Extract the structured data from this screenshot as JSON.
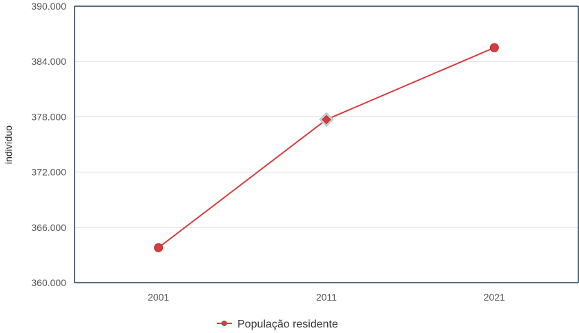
{
  "chart_data": {
    "type": "line",
    "title": "",
    "xlabel": "",
    "ylabel": "indivíduo",
    "categories": [
      "2001",
      "2011",
      "2021"
    ],
    "series": [
      {
        "name": "População residente",
        "values": [
          363800,
          377700,
          385500
        ],
        "color": "#d63c3c",
        "markers": [
          "circle",
          "diamond",
          "circle"
        ]
      }
    ],
    "ylim": [
      360000,
      390000
    ],
    "yticks": [
      360000,
      366000,
      372000,
      378000,
      384000,
      390000
    ],
    "ytick_labels": [
      "360.000",
      "366.000",
      "372.000",
      "378.000",
      "384.000",
      "390.000"
    ],
    "grid": true,
    "legend_position": "bottom",
    "colors": {
      "series": "#d63c3c",
      "marker_highlight": "#cfcfcf",
      "axis": "#1f3a57",
      "grid": "#d9d9d9"
    }
  }
}
